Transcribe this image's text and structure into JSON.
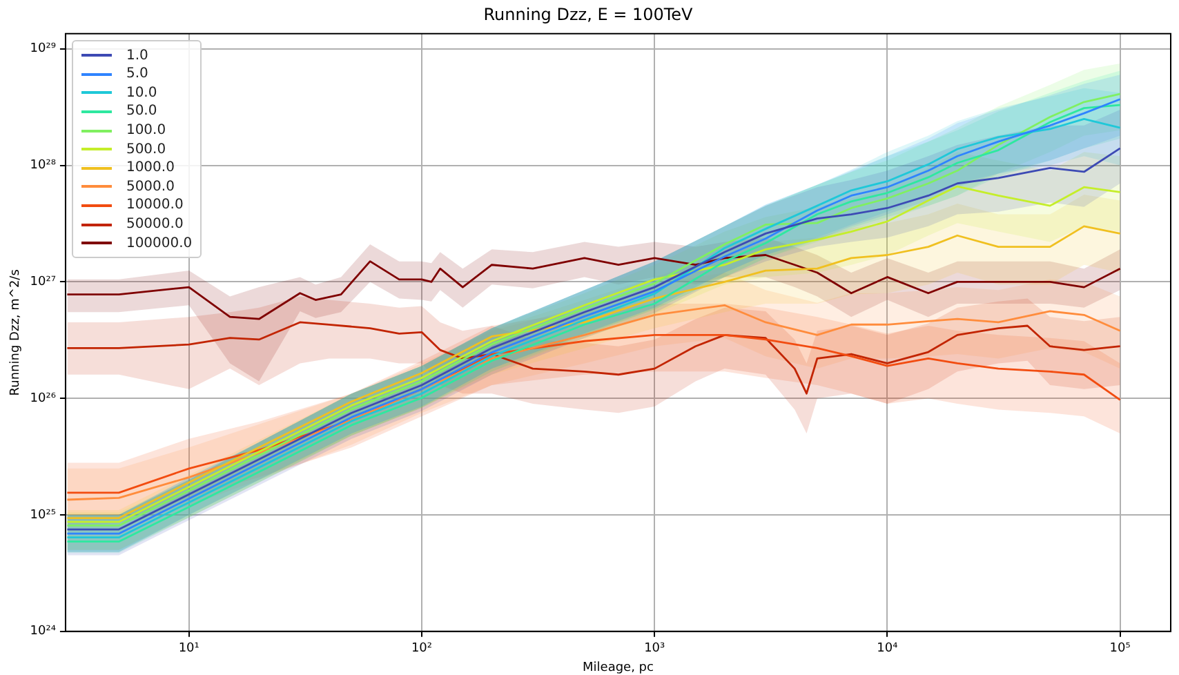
{
  "chart_data": {
    "type": "line",
    "title": "Running Dzz, E = 100TeV",
    "xlabel": "Mileage, pc",
    "ylabel": "Running Dzz, m^2/s",
    "log": "xy",
    "grid": true,
    "legend": "top left",
    "marker": "none",
    "xlim": [
      2.95,
      165000
    ],
    "ylim": [
      1e+24,
      1.35e+29
    ],
    "xticks": [
      {
        "value": 10,
        "label": "10¹"
      },
      {
        "value": 100,
        "label": "10²"
      },
      {
        "value": 1000,
        "label": "10³"
      },
      {
        "value": 10000,
        "label": "10⁴"
      },
      {
        "value": 100000,
        "label": "10⁵"
      }
    ],
    "yticks": [
      {
        "value": 1e+24,
        "label": "10²⁴"
      },
      {
        "value": 1e+25,
        "label": "10²⁵"
      },
      {
        "value": 1e+26,
        "label": "10²⁶"
      },
      {
        "value": 1e+27,
        "label": "10²⁷"
      },
      {
        "value": 1e+28,
        "label": "10²⁸"
      },
      {
        "value": 1e+29,
        "label": "10²⁹"
      }
    ],
    "x": [
      3,
      5,
      10,
      20,
      50,
      100,
      200,
      500,
      1000,
      2000,
      3000,
      5000,
      7000,
      10000,
      15000,
      20000,
      30000,
      50000,
      70000,
      100000
    ],
    "series": [
      {
        "name": "1.0",
        "color": "#3d4ab4",
        "values": [
          7.5e+24,
          7.5e+24,
          1.5e+25,
          3e+25,
          7.5e+25,
          1.3e+26,
          2.7e+26,
          5.5e+26,
          9e+26,
          1.8e+27,
          2.6e+27,
          3.5e+27,
          3.8e+27,
          4.3e+27,
          5.5e+27,
          7e+27,
          7.8e+27,
          9.5e+27,
          8.8e+27,
          1.4e+28
        ],
        "lower": [
          4.5e+24,
          4.5e+24,
          9e+24,
          1.8e+25,
          4.5e+25,
          7.8e+25,
          1.6e+26,
          3.3e+26,
          5.4e+26,
          1.1e+27,
          1.5e+27,
          2e+27,
          2.2e+27,
          2.4e+27,
          3e+27,
          3.8e+27,
          4e+27,
          4.8e+27,
          4.4e+27,
          7e+27
        ],
        "upper": [
          1e+25,
          1e+25,
          2e+25,
          4.2e+25,
          1.1e+26,
          1.9e+26,
          4e+26,
          8.5e+26,
          1.5e+27,
          3e+27,
          4.5e+27,
          6.5e+27,
          7.5e+27,
          9e+27,
          1.2e+28,
          1.5e+28,
          1.8e+28,
          2.2e+28,
          2.2e+28,
          3e+28
        ]
      },
      {
        "name": "5.0",
        "color": "#2f84ff",
        "values": [
          6.9e+24,
          6.9e+24,
          1.38e+25,
          2.76e+25,
          6.9e+25,
          1.2e+26,
          2.48e+26,
          5.06e+26,
          8.3e+26,
          1.65e+27,
          2.35e+27,
          4.1e+27,
          5.5e+27,
          6.5e+27,
          9e+27,
          1.2e+28,
          1.6e+28,
          2.2e+28,
          2.8e+28,
          3.7e+28
        ],
        "lower": [
          4.8e+24,
          4.8e+24,
          1e+25,
          2e+25,
          5e+25,
          8.5e+25,
          1.8e+26,
          3.6e+26,
          6e+26,
          1.2e+27,
          1.7e+27,
          2.3e+27,
          3e+27,
          3.8e+27,
          5e+27,
          6.5e+27,
          8.5e+27,
          1.1e+28,
          1.4e+28,
          1.8e+28
        ],
        "upper": [
          1e+25,
          1e+25,
          2.1e+25,
          4.2e+25,
          1.1e+26,
          1.9e+26,
          4e+26,
          8.5e+26,
          1.5e+27,
          3e+27,
          4.6e+27,
          6.8e+27,
          9e+27,
          1.2e+28,
          1.7e+28,
          2.3e+28,
          3e+28,
          4e+28,
          5e+28,
          6e+28
        ]
      },
      {
        "name": "10.0",
        "color": "#1fc8d8",
        "values": [
          6.4e+24,
          6.4e+24,
          1.28e+25,
          2.55e+25,
          6.4e+25,
          1.1e+26,
          2.3e+26,
          4.7e+26,
          7.9e+26,
          1.95e+27,
          2.85e+27,
          4.5e+27,
          6.1e+27,
          7.3e+27,
          1.02e+28,
          1.38e+28,
          1.75e+28,
          2.05e+28,
          2.5e+28,
          2.1e+28
        ],
        "lower": [
          4.8e+24,
          4.8e+24,
          1e+25,
          2e+25,
          5e+25,
          8.5e+25,
          1.8e+26,
          3.6e+26,
          6e+26,
          1.2e+27,
          1.7e+27,
          2.4e+27,
          3.1e+27,
          4e+27,
          5.5e+27,
          7e+27,
          8.5e+27,
          1e+28,
          1.2e+28,
          1e+28
        ],
        "upper": [
          1e+25,
          1e+25,
          2.1e+25,
          4.2e+25,
          1.1e+26,
          1.9e+26,
          4e+26,
          8.5e+26,
          1.5e+27,
          3e+27,
          4.6e+27,
          6.8e+27,
          9.2e+27,
          1.3e+28,
          1.8e+28,
          2.4e+28,
          3.1e+28,
          3.9e+28,
          4.6e+28,
          4.2e+28
        ]
      },
      {
        "name": "50.0",
        "color": "#2ee8a0",
        "values": [
          5.9e+24,
          5.9e+24,
          1.17e+25,
          2.34e+25,
          5.9e+25,
          1.01e+26,
          2.1e+26,
          4.3e+26,
          6.5e+26,
          1.5e+27,
          2.15e+27,
          3.8e+27,
          4.9e+27,
          5.8e+27,
          7.9e+27,
          1.05e+28,
          1.35e+28,
          2.35e+28,
          3.1e+28,
          3.3e+28
        ],
        "lower": [
          4.7e+24,
          4.7e+24,
          9.5e+24,
          1.9e+25,
          4.8e+25,
          8.3e+25,
          1.7e+26,
          3.5e+26,
          5.8e+26,
          1.1e+27,
          1.6e+27,
          2.3e+27,
          2.9e+27,
          3.6e+27,
          4.5e+27,
          5.5e+27,
          8e+27,
          1.1e+28,
          1.4e+28,
          1.7e+28
        ],
        "upper": [
          1e+25,
          1e+25,
          2e+25,
          4.2e+25,
          1.1e+26,
          1.9e+26,
          4e+26,
          8.5e+26,
          1.5e+27,
          3e+27,
          4.5e+27,
          6.8e+27,
          8.8e+27,
          1.2e+28,
          1.6e+28,
          2e+28,
          2.9e+28,
          4.2e+28,
          5.3e+28,
          6.5e+28
        ]
      },
      {
        "name": "100.0",
        "color": "#80f060",
        "values": [
          8.1e+24,
          8.1e+24,
          1.62e+25,
          3.24e+25,
          8.1e+25,
          1.4e+26,
          2.92e+26,
          5.9e+26,
          9.7e+26,
          2.1e+27,
          3.1e+27,
          3.2e+27,
          4.3e+27,
          5.2e+27,
          7e+27,
          9e+27,
          1.5e+28,
          2.6e+28,
          3.5e+28,
          4.1e+28
        ],
        "lower": [
          4.8e+24,
          4.8e+24,
          9.5e+24,
          1.9e+25,
          4.8e+25,
          8.3e+25,
          1.8e+26,
          3.5e+26,
          5.8e+26,
          1.1e+27,
          1.6e+27,
          2.2e+27,
          2.8e+27,
          3.4e+27,
          4.5e+27,
          5.5e+27,
          8.5e+27,
          1.3e+28,
          1.8e+28,
          2e+28
        ],
        "upper": [
          1e+25,
          1e+25,
          2e+25,
          4.2e+25,
          1.1e+26,
          1.9e+26,
          4e+26,
          8.5e+26,
          1.5e+27,
          3e+27,
          4.5e+27,
          6.8e+27,
          8.8e+27,
          1.1e+28,
          1.6e+28,
          2.1e+28,
          3.2e+28,
          4.9e+28,
          6.6e+28,
          7.5e+28
        ]
      },
      {
        "name": "500.0",
        "color": "#c5ee2a",
        "values": [
          8.7e+24,
          8.7e+24,
          1.74e+25,
          3.48e+25,
          8.7e+25,
          1.5e+26,
          3.1e+26,
          6.3e+26,
          1.05e+27,
          1.4e+27,
          1.9e+27,
          2.3e+27,
          2.7e+27,
          3.3e+27,
          5e+27,
          6.6e+27,
          5.5e+27,
          4.5e+27,
          6.5e+27,
          5.9e+27
        ],
        "lower": [
          5e+24,
          5e+24,
          9.5e+24,
          1.9e+25,
          4.8e+25,
          8.3e+25,
          1.7e+26,
          3.3e+26,
          5.3e+26,
          9.5e+26,
          1.1e+27,
          1.2e+27,
          1.4e+27,
          1.7e+27,
          2.5e+27,
          3.2e+27,
          2.7e+27,
          2.2e+27,
          3e+27,
          2.7e+27
        ],
        "upper": [
          1.05e+25,
          1.05e+25,
          2e+25,
          4.2e+25,
          1.1e+26,
          1.9e+26,
          4e+26,
          8e+26,
          1.4e+27,
          2.7e+27,
          3.6e+27,
          4.4e+27,
          5.2e+27,
          6.4e+27,
          9.5e+27,
          1.3e+28,
          1.1e+28,
          9e+27,
          1.3e+28,
          1.2e+28
        ]
      },
      {
        "name": "1000.0",
        "color": "#f0c020",
        "values": [
          9.4e+24,
          9.4e+24,
          1.9e+25,
          3.8e+25,
          9.4e+25,
          1.65e+26,
          3.4e+26,
          4.5e+26,
          7.2e+26,
          1e+27,
          1.25e+27,
          1.3e+27,
          1.6e+27,
          1.7e+27,
          2e+27,
          2.5e+27,
          2e+27,
          2e+27,
          3e+27,
          2.6e+27
        ],
        "lower": [
          5e+24,
          5e+24,
          1e+25,
          2e+25,
          4.8e+25,
          8.3e+25,
          1.6e+26,
          2.7e+26,
          4e+26,
          5.5e+26,
          6.5e+26,
          6.5e+26,
          7.8e+26,
          8e+26,
          9.5e+26,
          1.2e+27,
          9.5e+26,
          9.5e+26,
          1.4e+27,
          1.2e+27
        ],
        "upper": [
          1.1e+25,
          1.1e+25,
          2.2e+25,
          4.4e+25,
          1.1e+26,
          1.9e+26,
          3.9e+26,
          7e+26,
          1.1e+27,
          1.7e+27,
          2.2e+27,
          2.4e+27,
          2.9e+27,
          3.2e+27,
          3.8e+27,
          4.7e+27,
          3.8e+27,
          3.8e+27,
          5.6e+27,
          5e+27
        ]
      },
      {
        "name": "5000.0",
        "color": "#ff8c3c",
        "values": [
          1.35e+25,
          1.4e+25,
          2.1e+25,
          3.4e+25,
          6.5e+25,
          1.2e+26,
          2.2e+26,
          3.5e+26,
          5.2e+26,
          6.3e+26,
          4.5e+26,
          3.5e+26,
          4.3e+26,
          4.3e+26,
          4.6e+26,
          4.8e+26,
          4.5e+26,
          5.6e+26,
          5.2e+26,
          3.8e+26
        ],
        "lower": [
          8e+24,
          8.5e+24,
          1.2e+25,
          2e+25,
          4e+25,
          7.5e+25,
          1.3e+26,
          2e+26,
          2.8e+26,
          3.3e+26,
          2.3e+26,
          1.8e+26,
          2.2e+26,
          2.2e+26,
          2.3e+26,
          2.4e+26,
          2.2e+26,
          2.7e+26,
          2.5e+26,
          1.8e+26
        ],
        "upper": [
          2.5e+25,
          2.5e+25,
          3.8e+25,
          6e+25,
          1.1e+26,
          2e+26,
          3.8e+26,
          6.2e+26,
          9.5e+26,
          1.2e+27,
          8.5e+26,
          6.6e+26,
          8e+26,
          8e+26,
          8.5e+26,
          9e+26,
          8.5e+26,
          1.05e+27,
          1e+27,
          7.5e+26
        ]
      },
      {
        "name": "10000.0",
        "color": "#f24c10",
        "values": [
          1.55e+25,
          1.55e+25,
          2.5e+25,
          3.6e+25,
          6.5e+25,
          1.2e+26,
          2.4e+26,
          3.1e+26,
          3.5e+26,
          3.5e+26,
          3.2e+26,
          2.7e+26,
          2.3e+26,
          1.9e+26,
          2.2e+26,
          2e+26,
          1.8e+26,
          1.7e+26,
          1.6e+26,
          9.7e+25
        ],
        "lower": [
          9e+24,
          9e+24,
          1.4e+25,
          2.1e+25,
          3.8e+25,
          7e+25,
          1.3e+26,
          1.6e+26,
          1.7e+26,
          1.7e+26,
          1.5e+26,
          1.3e+26,
          1.1e+26,
          9e+25,
          1e+26,
          9e+25,
          8e+25,
          7.5e+25,
          7e+25,
          5e+25
        ],
        "upper": [
          2.8e+25,
          2.8e+25,
          4.5e+25,
          6.3e+25,
          1.1e+26,
          2.1e+26,
          4.2e+26,
          5.6e+26,
          6.5e+26,
          6.5e+26,
          6e+26,
          5e+26,
          4.3e+26,
          3.6e+26,
          4.2e+26,
          3.8e+26,
          3.5e+26,
          3.3e+26,
          3.1e+26,
          2e+26
        ]
      },
      {
        "name": "50000.0",
        "color": "#c22400",
        "x": [
          3,
          5,
          10,
          15,
          20,
          30,
          40,
          60,
          80,
          100,
          120,
          150,
          200,
          300,
          500,
          700,
          1000,
          1500,
          2000,
          3000,
          4000,
          4500,
          5000,
          7000,
          10000,
          15000,
          20000,
          30000,
          40000,
          50000,
          70000,
          100000
        ],
        "values": [
          2.7e+26,
          2.7e+26,
          2.9e+26,
          3.3e+26,
          3.2e+26,
          4.5e+26,
          4.3e+26,
          4e+26,
          3.6e+26,
          3.7e+26,
          2.6e+26,
          2.2e+26,
          2.4e+26,
          1.8e+26,
          1.7e+26,
          1.6e+26,
          1.8e+26,
          2.8e+26,
          3.5e+26,
          3.3e+26,
          1.8e+26,
          1.1e+26,
          2.2e+26,
          2.4e+26,
          2e+26,
          2.5e+26,
          3.5e+26,
          4e+26,
          4.2e+26,
          2.8e+26,
          2.6e+26,
          2.8e+26
        ],
        "lower": [
          1.6e+26,
          1.6e+26,
          1.2e+26,
          1.8e+26,
          1.3e+26,
          2e+26,
          2.2e+26,
          2.2e+26,
          2e+26,
          2e+26,
          1.3e+26,
          1.1e+26,
          1.1e+26,
          9e+25,
          8e+25,
          7.5e+25,
          8.5e+25,
          1.4e+26,
          1.8e+26,
          1.6e+26,
          8e+25,
          5e+25,
          1e+26,
          1.1e+26,
          9e+25,
          1.2e+26,
          1.7e+26,
          2e+26,
          2.1e+26,
          1.3e+26,
          1.2e+26,
          1.3e+26
        ],
        "upper": [
          4.5e+26,
          4.5e+26,
          5e+26,
          5.5e+26,
          6e+26,
          7.5e+26,
          7e+26,
          6.5e+26,
          6e+26,
          6.2e+26,
          4.5e+26,
          3.8e+26,
          4.2e+26,
          3.2e+26,
          3e+26,
          2.8e+26,
          3.2e+26,
          4.8e+26,
          6e+26,
          5.6e+26,
          3.2e+26,
          2e+26,
          3.8e+26,
          4.2e+26,
          3.5e+26,
          4.4e+26,
          6e+26,
          6.8e+26,
          7.2e+26,
          5e+26,
          4.6e+26,
          5e+26
        ]
      },
      {
        "name": "100000.0",
        "color": "#7f0000",
        "x": [
          3,
          5,
          10,
          15,
          20,
          30,
          35,
          45,
          60,
          80,
          100,
          110,
          120,
          150,
          200,
          300,
          500,
          700,
          1000,
          1500,
          2000,
          3000,
          4000,
          5000,
          7000,
          10000,
          15000,
          20000,
          30000,
          50000,
          70000,
          100000
        ],
        "values": [
          7.8e+26,
          7.8e+26,
          9e+26,
          5e+26,
          4.8e+26,
          8e+26,
          7e+26,
          7.8e+26,
          1.5e+27,
          1.05e+27,
          1.05e+27,
          1e+27,
          1.3e+27,
          9e+26,
          1.4e+27,
          1.3e+27,
          1.6e+27,
          1.4e+27,
          1.6e+27,
          1.4e+27,
          1.6e+27,
          1.7e+27,
          1.4e+27,
          1.2e+27,
          8e+26,
          1.1e+27,
          8e+26,
          1e+27,
          1e+27,
          1e+27,
          9e+26,
          1.3e+27
        ],
        "lower": [
          5.5e+26,
          5.5e+26,
          6.3e+26,
          2e+26,
          1.4e+26,
          5.6e+26,
          4.9e+26,
          5.5e+26,
          1e+27,
          7.2e+26,
          7e+26,
          6.8e+26,
          8.5e+26,
          6e+26,
          9.5e+26,
          8.8e+26,
          1.1e+27,
          9.5e+26,
          1.1e+27,
          9.5e+26,
          1.1e+27,
          1.1e+27,
          9e+26,
          7.5e+26,
          5e+26,
          7e+26,
          5e+26,
          6.5e+26,
          6.5e+26,
          6.5e+26,
          6e+26,
          8.5e+26
        ],
        "upper": [
          1.05e+27,
          1.05e+27,
          1.25e+27,
          7.5e+26,
          9e+26,
          1.1e+27,
          9.5e+26,
          1.1e+27,
          2.1e+27,
          1.5e+27,
          1.5e+27,
          1.45e+27,
          1.8e+27,
          1.3e+27,
          1.9e+27,
          1.8e+27,
          2.2e+27,
          2e+27,
          2.2e+27,
          2e+27,
          2.2e+27,
          2.4e+27,
          2e+27,
          1.7e+27,
          1.2e+27,
          1.6e+27,
          1.2e+27,
          1.5e+27,
          1.5e+27,
          1.5e+27,
          1.3e+27,
          1.9e+27
        ]
      }
    ]
  }
}
